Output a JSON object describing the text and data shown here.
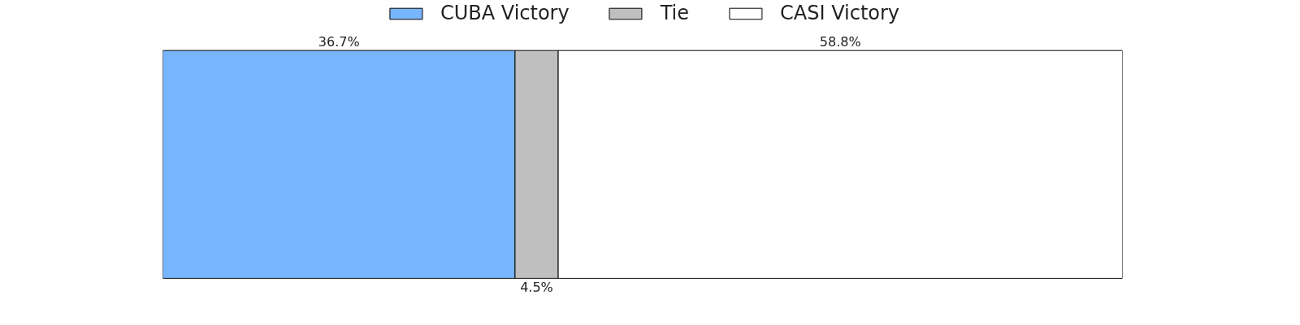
{
  "chart_data": {
    "type": "bar",
    "orientation": "horizontal",
    "stacked": true,
    "categories": [
      null
    ],
    "series": [
      {
        "name": "CUBA Victory",
        "color": "#77b5fe",
        "values": [
          36.7
        ],
        "value_labels": [
          "36.7%"
        ]
      },
      {
        "name": "Tie",
        "color": "#bfbfbf",
        "values": [
          4.5
        ],
        "value_labels": [
          "4.5%"
        ]
      },
      {
        "name": "CASI Victory",
        "color": "#ffffff",
        "values": [
          58.8
        ],
        "value_labels": [
          "58.8%"
        ]
      }
    ],
    "legend": "top",
    "tick_labels": false,
    "grid": false
  }
}
